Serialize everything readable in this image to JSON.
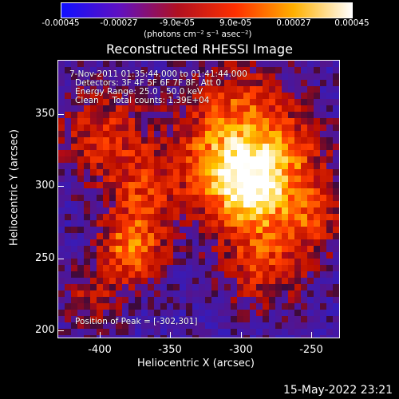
{
  "colorbar": {
    "ticks": [
      "-0.00045",
      "-0.00027",
      "-9.0e-05",
      "9.0e-05",
      "0.00027",
      "0.00045"
    ],
    "unit": "(photons cm⁻² s⁻¹ asec⁻²)",
    "colors": [
      "#1010ff",
      "#6010c0",
      "#b01020",
      "#ff3000",
      "#ffb000",
      "#ffffff"
    ]
  },
  "title": "Reconstructed RHESSI Image",
  "annotations": {
    "time": "7-Nov-2011 01:35:44.000 to 01:41:44.000",
    "detectors": "Detectors: 3F 4F 5F 6F 7F 8F, Att 0",
    "energy": "Energy Range: 25.0 - 50.0 keV",
    "method": "Clean     Total counts: 1.39E+04",
    "peak": "Position of Peak = [-302,301]"
  },
  "axes": {
    "xlabel": "Heliocentric X (arcsec)",
    "ylabel": "Heliocentric Y (arcsec)",
    "xticks": [
      "-400",
      "-350",
      "-300",
      "-250"
    ],
    "yticks": [
      "350",
      "300",
      "250",
      "200"
    ],
    "xlim": [
      -430,
      -235
    ],
    "ylim": [
      195,
      387
    ]
  },
  "datestamp": "15-May-2022 23:21"
}
